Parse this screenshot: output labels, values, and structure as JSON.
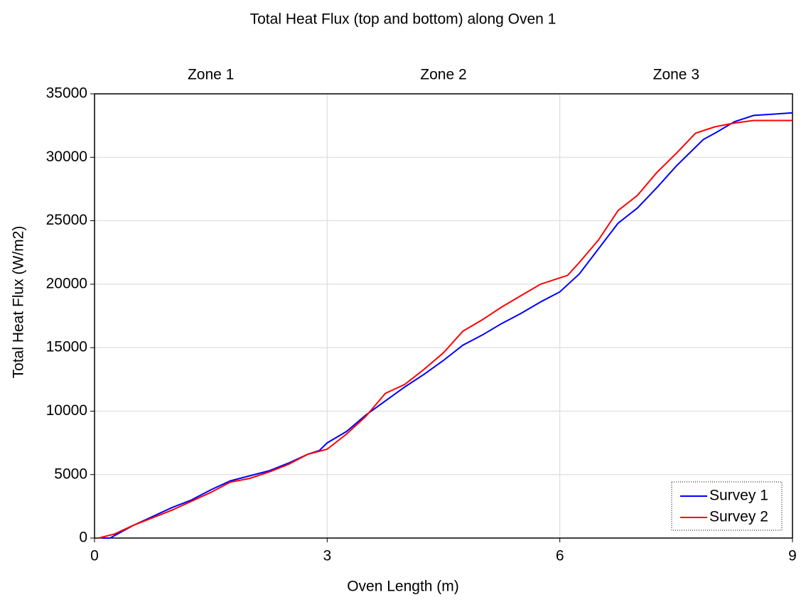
{
  "chart_data": {
    "type": "line",
    "title": "Total Heat Flux (top and bottom) along Oven 1",
    "x_label": "Oven Length (m)",
    "y_label": "Total Heat Flux (W/m2)",
    "zones": [
      "Zone 1",
      "Zone 2",
      "Zone 3"
    ],
    "xlim": [
      0,
      9
    ],
    "xticks": [
      0,
      3,
      6,
      9
    ],
    "ylim": [
      0,
      35000
    ],
    "yticks": [
      0,
      5000,
      10000,
      15000,
      20000,
      25000,
      30000,
      35000
    ],
    "grid": true,
    "legend": "lower right",
    "series": [
      {
        "name": "Survey 1",
        "color": "#0000ff",
        "x": [
          0.1,
          0.2,
          0.5,
          0.75,
          1.0,
          1.25,
          1.5,
          1.75,
          2.0,
          2.25,
          2.5,
          2.75,
          2.9,
          3.0,
          3.25,
          3.5,
          3.75,
          4.0,
          4.25,
          4.5,
          4.75,
          5.0,
          5.25,
          5.5,
          5.75,
          6.0,
          6.25,
          6.5,
          6.75,
          7.0,
          7.25,
          7.5,
          7.75,
          7.85,
          8.0,
          8.25,
          8.5,
          8.75,
          9.0
        ],
        "values": [
          0,
          0,
          1000,
          1700,
          2400,
          3000,
          3800,
          4500,
          4900,
          5300,
          5900,
          6600,
          6900,
          7500,
          8400,
          9700,
          10800,
          11900,
          12900,
          14000,
          15200,
          16000,
          16900,
          17700,
          18600,
          19400,
          20800,
          22800,
          24800,
          26000,
          27600,
          29300,
          30800,
          31400,
          31900,
          32800,
          33300,
          33400,
          33500
        ]
      },
      {
        "name": "Survey 2",
        "color": "#ff0000",
        "x": [
          0.05,
          0.25,
          0.5,
          0.75,
          1.0,
          1.25,
          1.5,
          1.75,
          2.0,
          2.25,
          2.5,
          2.75,
          3.0,
          3.25,
          3.5,
          3.75,
          4.0,
          4.25,
          4.5,
          4.75,
          5.0,
          5.25,
          5.5,
          5.75,
          6.0,
          6.1,
          6.25,
          6.5,
          6.75,
          7.0,
          7.25,
          7.5,
          7.75,
          8.0,
          8.25,
          8.5,
          9.0
        ],
        "values": [
          0,
          300,
          1000,
          1600,
          2200,
          2900,
          3600,
          4400,
          4700,
          5200,
          5800,
          6600,
          7000,
          8200,
          9600,
          11400,
          12100,
          13300,
          14600,
          16300,
          17200,
          18200,
          19100,
          20000,
          20500,
          20700,
          21700,
          23500,
          25800,
          27000,
          28800,
          30300,
          31900,
          32400,
          32700,
          32900,
          32900
        ]
      }
    ]
  }
}
